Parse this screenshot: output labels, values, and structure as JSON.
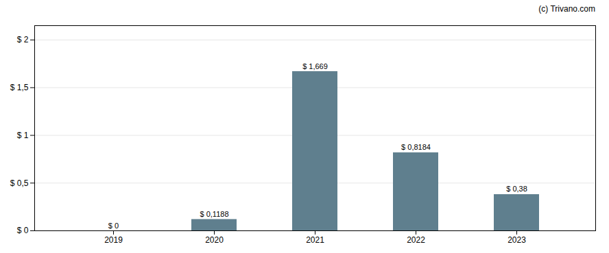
{
  "chart_data": {
    "type": "bar",
    "categories": [
      "2019",
      "2020",
      "2021",
      "2022",
      "2023"
    ],
    "values": [
      0,
      0.1188,
      1.669,
      0.8184,
      0.38
    ],
    "value_labels": [
      "$ 0",
      "$ 0,1188",
      "$ 1,669",
      "$ 0,8184",
      "$ 0,38"
    ],
    "color": "#5f7f8e",
    "ylim": [
      0,
      2.15
    ],
    "yticks": [
      {
        "value": 0,
        "label": "$ 0"
      },
      {
        "value": 0.5,
        "label": "$ 0,5"
      },
      {
        "value": 1,
        "label": "$ 1"
      },
      {
        "value": 1.5,
        "label": "$ 1,5"
      },
      {
        "value": 2,
        "label": "$ 2"
      }
    ],
    "grid": true,
    "data_labels": true,
    "annotations": [
      "(c) Trivano.com"
    ]
  }
}
